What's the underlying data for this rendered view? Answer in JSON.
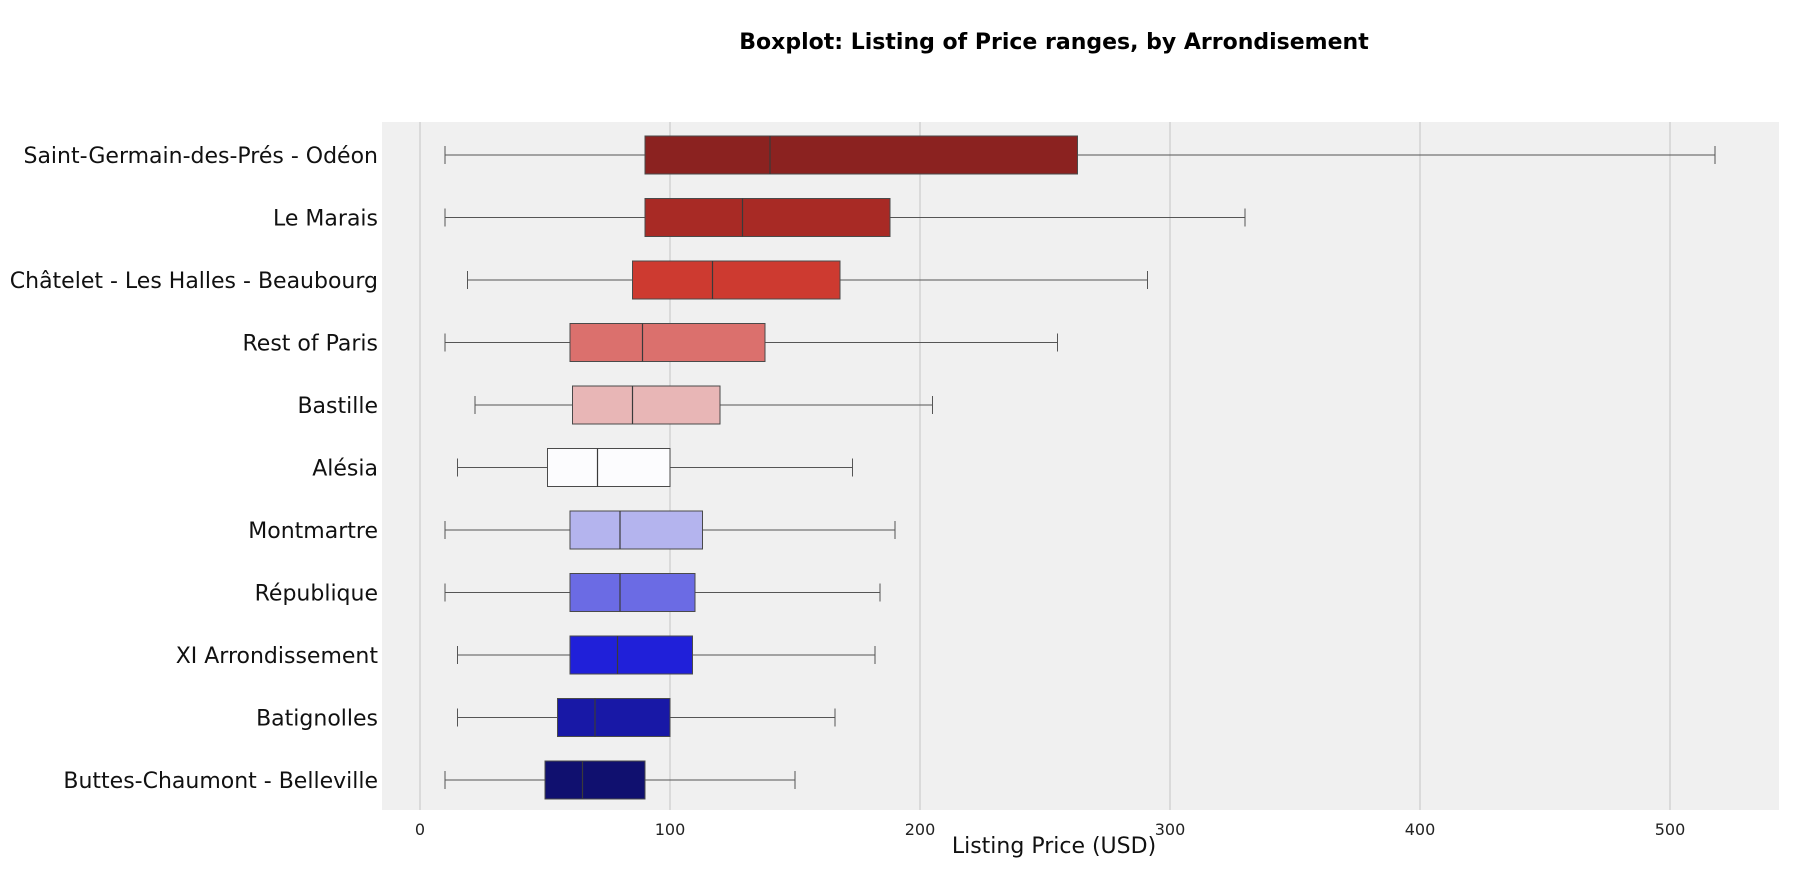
{
  "chart_data": {
    "type": "boxplot",
    "orientation": "horizontal",
    "title": "Boxplot: Listing of Price ranges, by Arrondisement",
    "xlabel": "Listing Price (USD)",
    "ylabel": "",
    "xlim": [
      -15,
      545
    ],
    "xticks": [
      0,
      100,
      200,
      300,
      400,
      500
    ],
    "xtick_labels": [
      "0",
      "100",
      "200",
      "300",
      "400",
      "500"
    ],
    "grid": "vertical",
    "background_color": "#f0f0f0",
    "categories": [
      "Saint-Germain-des-Prés - Odéon",
      "Le Marais",
      "Châtelet - Les Halles - Beaubourg",
      "Rest of Paris",
      "Bastille",
      "Alésia",
      "Montmartre",
      "République",
      "XI Arrondissement",
      "Batignolles",
      "Buttes-Chaumont - Belleville"
    ],
    "boxes": [
      {
        "whisker_low": 10,
        "q1": 90,
        "median": 140,
        "q3": 263,
        "whisker_high": 518,
        "color": "#8b2220"
      },
      {
        "whisker_low": 10,
        "q1": 90,
        "median": 129,
        "q3": 188,
        "whisker_high": 330,
        "color": "#a82a25"
      },
      {
        "whisker_low": 19,
        "q1": 85,
        "median": 117,
        "q3": 168,
        "whisker_high": 291,
        "color": "#cd3a30"
      },
      {
        "whisker_low": 10,
        "q1": 60,
        "median": 89,
        "q3": 138,
        "whisker_high": 255,
        "color": "#db706d"
      },
      {
        "whisker_low": 22,
        "q1": 61,
        "median": 85,
        "q3": 120,
        "whisker_high": 205,
        "color": "#e8b6b6"
      },
      {
        "whisker_low": 15,
        "q1": 51,
        "median": 71,
        "q3": 100,
        "whisker_high": 173,
        "color": "#fcfcfe"
      },
      {
        "whisker_low": 10,
        "q1": 60,
        "median": 80,
        "q3": 113,
        "whisker_high": 190,
        "color": "#b4b4ee"
      },
      {
        "whisker_low": 10,
        "q1": 60,
        "median": 80,
        "q3": 110,
        "whisker_high": 184,
        "color": "#6b6be4"
      },
      {
        "whisker_low": 15,
        "q1": 60,
        "median": 79,
        "q3": 109,
        "whisker_high": 182,
        "color": "#2020d9"
      },
      {
        "whisker_low": 15,
        "q1": 55,
        "median": 70,
        "q3": 100,
        "whisker_high": 166,
        "color": "#1818a6"
      },
      {
        "whisker_low": 10,
        "q1": 50,
        "median": 65,
        "q3": 90,
        "whisker_high": 150,
        "color": "#10106f"
      }
    ]
  }
}
